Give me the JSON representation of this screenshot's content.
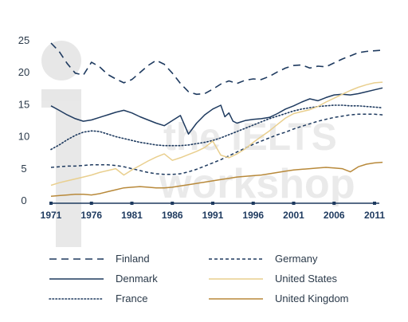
{
  "watermark": {
    "line1": "the IELTS",
    "line2": "workshop"
  },
  "chart_data": {
    "type": "line",
    "title": "",
    "xlabel": "",
    "ylabel": "",
    "ylim": [
      0,
      25
    ],
    "xlim": [
      1971,
      2012
    ],
    "yticks": [
      "0",
      "5",
      "10",
      "15",
      "20",
      "25"
    ],
    "xticks": [
      "1971",
      "1976",
      "1981",
      "1986",
      "1991",
      "1996",
      "2001",
      "2006",
      "2011"
    ],
    "grid": false,
    "legend_position": "bottom",
    "series": [
      {
        "name": "Finland",
        "color": "#1e3a5f",
        "style": "dashed",
        "points": [
          [
            1971,
            24.5
          ],
          [
            1972,
            23.2
          ],
          [
            1973,
            21.3
          ],
          [
            1974,
            19.8
          ],
          [
            1975,
            19.5
          ],
          [
            1976,
            21.5
          ],
          [
            1977,
            20.8
          ],
          [
            1978,
            19.6
          ],
          [
            1979,
            18.9
          ],
          [
            1980,
            18.3
          ],
          [
            1981,
            18.8
          ],
          [
            1982,
            19.9
          ],
          [
            1983,
            21.0
          ],
          [
            1984,
            21.8
          ],
          [
            1985,
            21.2
          ],
          [
            1986,
            19.8
          ],
          [
            1987,
            18.2
          ],
          [
            1988,
            16.9
          ],
          [
            1989,
            16.5
          ],
          [
            1990,
            16.6
          ],
          [
            1991,
            17.3
          ],
          [
            1992,
            18.1
          ],
          [
            1993,
            18.6
          ],
          [
            1994,
            18.2
          ],
          [
            1995,
            18.7
          ],
          [
            1996,
            18.9
          ],
          [
            1997,
            18.8
          ],
          [
            1998,
            19.3
          ],
          [
            1999,
            20.0
          ],
          [
            2000,
            20.6
          ],
          [
            2001,
            21.0
          ],
          [
            2002,
            21.1
          ],
          [
            2003,
            20.6
          ],
          [
            2004,
            20.9
          ],
          [
            2005,
            20.8
          ],
          [
            2006,
            21.4
          ],
          [
            2007,
            22.0
          ],
          [
            2008,
            22.5
          ],
          [
            2009,
            23.0
          ],
          [
            2010,
            23.2
          ],
          [
            2011,
            23.3
          ],
          [
            2012,
            23.4
          ]
        ]
      },
      {
        "name": "Denmark",
        "color": "#1e3a5f",
        "style": "solid",
        "points": [
          [
            1971,
            14.7
          ],
          [
            1972,
            14.0
          ],
          [
            1973,
            13.3
          ],
          [
            1974,
            12.7
          ],
          [
            1975,
            12.3
          ],
          [
            1976,
            12.5
          ],
          [
            1977,
            12.9
          ],
          [
            1978,
            13.3
          ],
          [
            1979,
            13.7
          ],
          [
            1980,
            14.0
          ],
          [
            1981,
            13.6
          ],
          [
            1982,
            13.0
          ],
          [
            1983,
            12.5
          ],
          [
            1984,
            12.0
          ],
          [
            1985,
            11.6
          ],
          [
            1986,
            12.4
          ],
          [
            1987,
            13.2
          ],
          [
            1988,
            10.3
          ],
          [
            1989,
            12.0
          ],
          [
            1990,
            13.3
          ],
          [
            1991,
            14.2
          ],
          [
            1992,
            14.8
          ],
          [
            1992.5,
            13.0
          ],
          [
            1993,
            13.6
          ],
          [
            1993.5,
            12.3
          ],
          [
            1994,
            12.0
          ],
          [
            1995,
            12.4
          ],
          [
            1996,
            12.6
          ],
          [
            1997,
            12.7
          ],
          [
            1998,
            12.9
          ],
          [
            1999,
            13.5
          ],
          [
            2000,
            14.2
          ],
          [
            2001,
            14.7
          ],
          [
            2002,
            15.3
          ],
          [
            2003,
            15.8
          ],
          [
            2004,
            15.5
          ],
          [
            2005,
            16.0
          ],
          [
            2006,
            16.4
          ],
          [
            2007,
            16.5
          ],
          [
            2008,
            16.4
          ],
          [
            2009,
            16.6
          ],
          [
            2010,
            16.9
          ],
          [
            2011,
            17.2
          ],
          [
            2012,
            17.5
          ]
        ]
      },
      {
        "name": "France",
        "color": "#1e3a5f",
        "style": "dotted",
        "points": [
          [
            1971,
            7.9
          ],
          [
            1972,
            8.6
          ],
          [
            1973,
            9.4
          ],
          [
            1974,
            10.1
          ],
          [
            1975,
            10.6
          ],
          [
            1976,
            10.8
          ],
          [
            1977,
            10.7
          ],
          [
            1978,
            10.3
          ],
          [
            1979,
            9.9
          ],
          [
            1980,
            9.6
          ],
          [
            1981,
            9.3
          ],
          [
            1982,
            9.0
          ],
          [
            1983,
            8.8
          ],
          [
            1984,
            8.6
          ],
          [
            1985,
            8.5
          ],
          [
            1986,
            8.5
          ],
          [
            1987,
            8.5
          ],
          [
            1988,
            8.6
          ],
          [
            1989,
            8.8
          ],
          [
            1990,
            9.0
          ],
          [
            1991,
            9.3
          ],
          [
            1992,
            9.7
          ],
          [
            1993,
            10.2
          ],
          [
            1994,
            10.7
          ],
          [
            1995,
            11.2
          ],
          [
            1996,
            11.7
          ],
          [
            1997,
            12.2
          ],
          [
            1998,
            12.7
          ],
          [
            1999,
            13.1
          ],
          [
            2000,
            13.5
          ],
          [
            2001,
            13.9
          ],
          [
            2002,
            14.2
          ],
          [
            2003,
            14.4
          ],
          [
            2004,
            14.6
          ],
          [
            2005,
            14.7
          ],
          [
            2006,
            14.8
          ],
          [
            2007,
            14.8
          ],
          [
            2008,
            14.7
          ],
          [
            2009,
            14.7
          ],
          [
            2010,
            14.6
          ],
          [
            2011,
            14.5
          ],
          [
            2012,
            14.4
          ]
        ]
      },
      {
        "name": "Germany",
        "color": "#1e3a5f",
        "style": "dashed",
        "points": [
          [
            1971,
            5.1
          ],
          [
            1972,
            5.2
          ],
          [
            1973,
            5.3
          ],
          [
            1974,
            5.3
          ],
          [
            1975,
            5.4
          ],
          [
            1976,
            5.5
          ],
          [
            1977,
            5.5
          ],
          [
            1978,
            5.5
          ],
          [
            1979,
            5.4
          ],
          [
            1980,
            5.2
          ],
          [
            1981,
            4.9
          ],
          [
            1982,
            4.6
          ],
          [
            1983,
            4.3
          ],
          [
            1984,
            4.1
          ],
          [
            1985,
            4.0
          ],
          [
            1986,
            4.0
          ],
          [
            1987,
            4.1
          ],
          [
            1988,
            4.4
          ],
          [
            1989,
            4.8
          ],
          [
            1990,
            5.3
          ],
          [
            1991,
            5.8
          ],
          [
            1992,
            6.3
          ],
          [
            1993,
            6.9
          ],
          [
            1994,
            7.5
          ],
          [
            1995,
            8.1
          ],
          [
            1996,
            8.7
          ],
          [
            1997,
            9.2
          ],
          [
            1998,
            9.7
          ],
          [
            1999,
            10.2
          ],
          [
            2000,
            10.6
          ],
          [
            2001,
            11.1
          ],
          [
            2002,
            11.5
          ],
          [
            2003,
            11.9
          ],
          [
            2004,
            12.3
          ],
          [
            2005,
            12.6
          ],
          [
            2006,
            12.9
          ],
          [
            2007,
            13.1
          ],
          [
            2008,
            13.3
          ],
          [
            2009,
            13.4
          ],
          [
            2010,
            13.4
          ],
          [
            2011,
            13.4
          ],
          [
            2012,
            13.3
          ]
        ]
      },
      {
        "name": "United States",
        "color": "#e9cf8e",
        "style": "solid",
        "points": [
          [
            1971,
            2.3
          ],
          [
            1972,
            2.7
          ],
          [
            1973,
            3.0
          ],
          [
            1974,
            3.3
          ],
          [
            1975,
            3.6
          ],
          [
            1976,
            3.9
          ],
          [
            1977,
            4.3
          ],
          [
            1978,
            4.6
          ],
          [
            1979,
            4.9
          ],
          [
            1980,
            3.9
          ],
          [
            1981,
            4.7
          ],
          [
            1982,
            5.4
          ],
          [
            1983,
            6.1
          ],
          [
            1984,
            6.7
          ],
          [
            1985,
            7.2
          ],
          [
            1986,
            6.2
          ],
          [
            1987,
            6.6
          ],
          [
            1988,
            7.1
          ],
          [
            1989,
            7.6
          ],
          [
            1990,
            8.2
          ],
          [
            1991,
            9.2
          ],
          [
            1992,
            7.0
          ],
          [
            1993,
            6.6
          ],
          [
            1994,
            7.2
          ],
          [
            1995,
            8.0
          ],
          [
            1996,
            9.0
          ],
          [
            1997,
            9.9
          ],
          [
            1998,
            10.8
          ],
          [
            1999,
            11.8
          ],
          [
            2000,
            12.8
          ],
          [
            2001,
            13.5
          ],
          [
            2002,
            13.8
          ],
          [
            2003,
            14.1
          ],
          [
            2004,
            14.6
          ],
          [
            2005,
            15.3
          ],
          [
            2006,
            15.9
          ],
          [
            2007,
            16.5
          ],
          [
            2008,
            17.1
          ],
          [
            2009,
            17.6
          ],
          [
            2010,
            18.0
          ],
          [
            2011,
            18.3
          ],
          [
            2012,
            18.4
          ]
        ]
      },
      {
        "name": "United Kingdom",
        "color": "#b8893a",
        "style": "solid",
        "points": [
          [
            1971,
            0.6
          ],
          [
            1972,
            0.7
          ],
          [
            1973,
            0.8
          ],
          [
            1974,
            0.9
          ],
          [
            1975,
            0.9
          ],
          [
            1976,
            0.8
          ],
          [
            1977,
            1.0
          ],
          [
            1978,
            1.3
          ],
          [
            1979,
            1.6
          ],
          [
            1980,
            1.9
          ],
          [
            1981,
            2.0
          ],
          [
            1982,
            2.1
          ],
          [
            1983,
            2.0
          ],
          [
            1984,
            1.9
          ],
          [
            1985,
            1.9
          ],
          [
            1986,
            2.0
          ],
          [
            1987,
            2.2
          ],
          [
            1988,
            2.4
          ],
          [
            1989,
            2.6
          ],
          [
            1990,
            2.8
          ],
          [
            1991,
            3.0
          ],
          [
            1992,
            3.2
          ],
          [
            1993,
            3.4
          ],
          [
            1994,
            3.6
          ],
          [
            1995,
            3.7
          ],
          [
            1996,
            3.8
          ],
          [
            1997,
            3.9
          ],
          [
            1998,
            4.1
          ],
          [
            1999,
            4.3
          ],
          [
            2000,
            4.5
          ],
          [
            2001,
            4.7
          ],
          [
            2002,
            4.8
          ],
          [
            2003,
            4.9
          ],
          [
            2004,
            5.0
          ],
          [
            2005,
            5.1
          ],
          [
            2006,
            5.0
          ],
          [
            2007,
            4.9
          ],
          [
            2008,
            4.4
          ],
          [
            2009,
            5.2
          ],
          [
            2010,
            5.6
          ],
          [
            2011,
            5.8
          ],
          [
            2012,
            5.9
          ]
        ]
      }
    ]
  }
}
